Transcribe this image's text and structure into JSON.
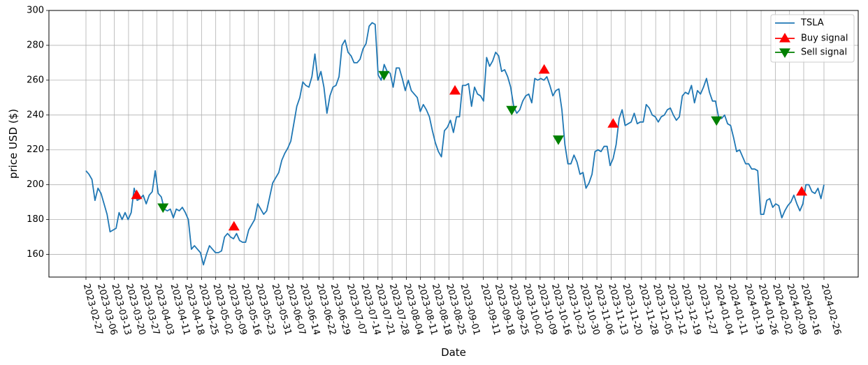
{
  "chart_data": {
    "type": "line",
    "title": "",
    "xlabel": "Date",
    "ylabel": "price USD ($)",
    "ylim": [
      147,
      300
    ],
    "yticks": [
      160,
      180,
      200,
      220,
      240,
      260,
      280,
      300
    ],
    "grid": true,
    "legend_position": "top-right",
    "x_ticks": [
      "2023-02-27",
      "2023-03-06",
      "2023-03-13",
      "2023-03-20",
      "2023-03-27",
      "2023-04-03",
      "2023-04-11",
      "2023-04-18",
      "2023-04-25",
      "2023-05-02",
      "2023-05-09",
      "2023-05-16",
      "2023-05-23",
      "2023-05-31",
      "2023-06-07",
      "2023-06-14",
      "2023-06-22",
      "2023-06-29",
      "2023-07-07",
      "2023-07-14",
      "2023-07-21",
      "2023-07-28",
      "2023-08-04",
      "2023-08-11",
      "2023-08-18",
      "2023-08-25",
      "2023-09-01",
      "2023-09-11",
      "2023-09-18",
      "2023-09-25",
      "2023-10-02",
      "2023-10-09",
      "2023-10-16",
      "2023-10-23",
      "2023-10-30",
      "2023-11-06",
      "2023-11-13",
      "2023-11-20",
      "2023-11-28",
      "2023-12-05",
      "2023-12-12",
      "2023-12-19",
      "2023-12-27",
      "2024-01-04",
      "2024-01-11",
      "2024-01-19",
      "2024-01-26",
      "2024-02-02",
      "2024-02-09",
      "2024-02-16",
      "2024-02-26"
    ],
    "series": [
      {
        "name": "TSLA",
        "color": "#1f77b4",
        "values": [
          208,
          206,
          203,
          191,
          198,
          195,
          189,
          183,
          173,
          174,
          175,
          184,
          180,
          184,
          180,
          184,
          198,
          191,
          192,
          194,
          189,
          194,
          196,
          208,
          195,
          193,
          186,
          185,
          186,
          181,
          186,
          185,
          187,
          184,
          180,
          163,
          165,
          163,
          161,
          154,
          160,
          165,
          163,
          161,
          161,
          162,
          170,
          172,
          170,
          169,
          172,
          168,
          167,
          167,
          174,
          177,
          180,
          189,
          186,
          183,
          185,
          193,
          201,
          204,
          207,
          214,
          218,
          221,
          225,
          235,
          245,
          250,
          259,
          257,
          256,
          262,
          275,
          260,
          265,
          256,
          241,
          251,
          256,
          257,
          262,
          280,
          283,
          276,
          274,
          270,
          270,
          272,
          278,
          281,
          291,
          293,
          292,
          263,
          260,
          269,
          265,
          264,
          256,
          267,
          267,
          261,
          254,
          260,
          254,
          252,
          250,
          242,
          246,
          243,
          239,
          231,
          224,
          219,
          216,
          231,
          233,
          237,
          230,
          239,
          239,
          257,
          257,
          258,
          245,
          256,
          252,
          251,
          248,
          273,
          268,
          271,
          276,
          274,
          265,
          266,
          262,
          256,
          245,
          241,
          243,
          248,
          251,
          252,
          247,
          261,
          260,
          261,
          260,
          262,
          257,
          251,
          254,
          255,
          243,
          223,
          212,
          212,
          217,
          213,
          206,
          207,
          198,
          201,
          206,
          219,
          220,
          219,
          222,
          222,
          211,
          215,
          223,
          238,
          243,
          234,
          235,
          236,
          241,
          235,
          236,
          236,
          246,
          244,
          240,
          239,
          236,
          239,
          240,
          243,
          244,
          240,
          237,
          239,
          251,
          253,
          252,
          257,
          247,
          254,
          252,
          256,
          261,
          253,
          248,
          248,
          239,
          238,
          240,
          235,
          234,
          227,
          219,
          220,
          216,
          212,
          212,
          209,
          209,
          208,
          183,
          183,
          191,
          192,
          187,
          189,
          188,
          181,
          185,
          188,
          190,
          194,
          189,
          185,
          189,
          200,
          200,
          196,
          195,
          198,
          192,
          200
        ]
      },
      {
        "name": "Buy signal",
        "color": "#ff0000",
        "marker": "triangle-up",
        "points": [
          {
            "x": "2023-03-24",
            "y": 194
          },
          {
            "x": "2023-05-11",
            "y": 176
          },
          {
            "x": "2023-08-28",
            "y": 254
          },
          {
            "x": "2023-10-11",
            "y": 266
          },
          {
            "x": "2023-11-14",
            "y": 235
          },
          {
            "x": "2024-02-15",
            "y": 196
          }
        ]
      },
      {
        "name": "Sell signal",
        "color": "#008000",
        "marker": "triangle-down",
        "points": [
          {
            "x": "2023-04-06",
            "y": 187
          },
          {
            "x": "2023-07-24",
            "y": 263
          },
          {
            "x": "2023-09-25",
            "y": 243
          },
          {
            "x": "2023-10-18",
            "y": 226
          },
          {
            "x": "2024-01-04",
            "y": 237
          }
        ]
      }
    ]
  }
}
